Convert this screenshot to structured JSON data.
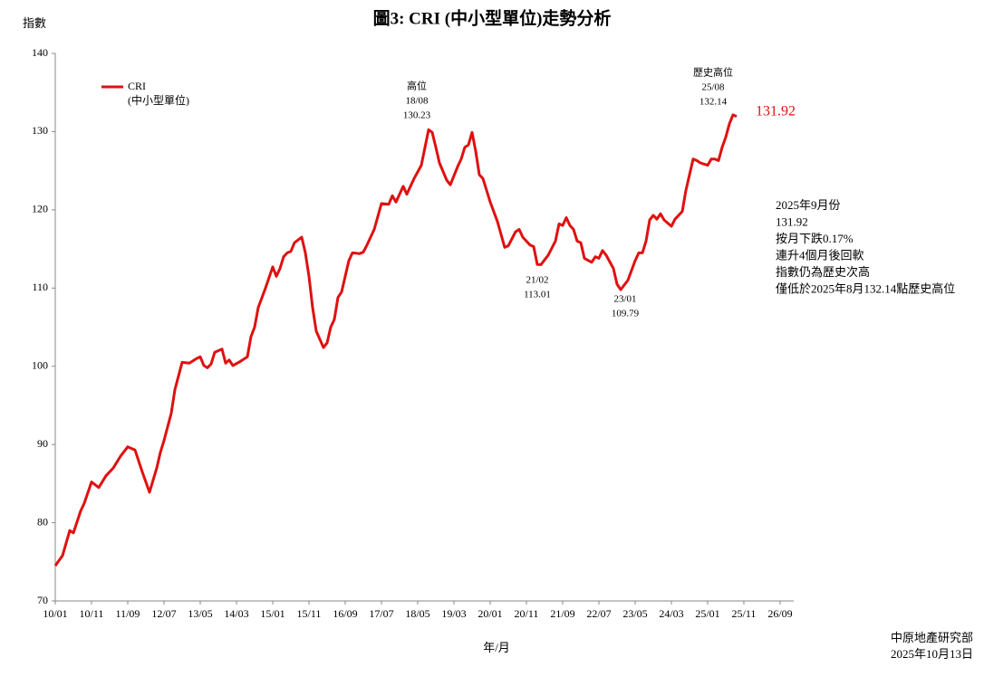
{
  "chart_data": {
    "type": "line",
    "title": "圖3: CRI (中小型單位)走勢分析",
    "y_label": "指數",
    "x_label": "年/月",
    "x": [
      "10/01",
      "10/03",
      "10/05",
      "10/06",
      "10/08",
      "10/09",
      "10/11",
      "11/01",
      "11/03",
      "11/05",
      "11/07",
      "11/09",
      "11/11",
      "12/01",
      "12/03",
      "12/05",
      "12/06",
      "12/07",
      "12/09",
      "12/10",
      "12/12",
      "13/02",
      "13/04",
      "13/05",
      "13/06",
      "13/07",
      "13/08",
      "13/09",
      "13/11",
      "13/12",
      "14/01",
      "14/02",
      "14/04",
      "14/06",
      "14/07",
      "14/08",
      "14/09",
      "14/11",
      "15/01",
      "15/02",
      "15/03",
      "15/04",
      "15/05",
      "15/06",
      "15/07",
      "15/09",
      "15/10",
      "15/11",
      "15/12",
      "16/01",
      "16/03",
      "16/04",
      "16/05",
      "16/06",
      "16/07",
      "16/08",
      "16/09",
      "16/10",
      "16/11",
      "17/01",
      "17/02",
      "17/03",
      "17/05",
      "17/07",
      "17/09",
      "17/10",
      "17/11",
      "18/01",
      "18/02",
      "18/04",
      "18/06",
      "18/08",
      "18/09",
      "18/10",
      "18/11",
      "19/01",
      "19/02",
      "19/04",
      "19/05",
      "19/06",
      "19/07",
      "19/08",
      "19/09",
      "19/10",
      "19/11",
      "20/01",
      "20/03",
      "20/05",
      "20/06",
      "20/08",
      "20/09",
      "20/10",
      "20/12",
      "21/01",
      "21/02",
      "21/03",
      "21/05",
      "21/07",
      "21/08",
      "21/09",
      "21/10",
      "21/11",
      "21/12",
      "22/01",
      "22/02",
      "22/03",
      "22/05",
      "22/06",
      "22/07",
      "22/08",
      "22/09",
      "22/11",
      "22/12",
      "23/01",
      "23/03",
      "23/05",
      "23/06",
      "23/07",
      "23/08",
      "23/09",
      "23/10",
      "23/11",
      "23/12",
      "24/01",
      "24/03",
      "24/04",
      "24/06",
      "24/07",
      "24/08",
      "24/09",
      "24/10",
      "24/11",
      "25/01",
      "25/02",
      "25/03",
      "25/04",
      "25/05",
      "25/06",
      "25/07",
      "25/08",
      "25/09"
    ],
    "series": [
      {
        "name": "CRI\n(中小型單位)",
        "color": "#e01010",
        "values": [
          74.5,
          75.8,
          79,
          78.7,
          81.5,
          82.5,
          85.2,
          84.5,
          86,
          87,
          88.5,
          89.7,
          89.3,
          86.5,
          83.9,
          87,
          89,
          90.5,
          94,
          97,
          100.5,
          100.4,
          101,
          101.2,
          100.1,
          99.8,
          100.3,
          101.8,
          102.2,
          100.4,
          100.8,
          100.1,
          100.6,
          101.2,
          103.8,
          105,
          107.5,
          110,
          112.7,
          111.5,
          112.5,
          114,
          114.5,
          114.7,
          115.8,
          116.5,
          114.5,
          111.5,
          107.5,
          104.5,
          102.4,
          103,
          105,
          106,
          108.8,
          109.5,
          111.5,
          113.5,
          114.5,
          114.4,
          114.6,
          115.5,
          117.5,
          120.8,
          120.7,
          121.8,
          121,
          123,
          122,
          124,
          125.7,
          130.23,
          129.9,
          128,
          126,
          123.8,
          123.2,
          125.5,
          126.5,
          128,
          128.3,
          129.9,
          127.5,
          124.5,
          124,
          121,
          118.5,
          115.2,
          115.4,
          117.2,
          117.5,
          116.5,
          115.5,
          115.3,
          113.01,
          113,
          114.2,
          116,
          118.2,
          118,
          119,
          118,
          117.5,
          116,
          115.8,
          113.8,
          113.3,
          114,
          113.8,
          114.8,
          114.2,
          112.5,
          110.5,
          109.79,
          111,
          113.5,
          114.5,
          114.5,
          116,
          118.7,
          119.3,
          118.8,
          119.5,
          118.7,
          117.9,
          118.8,
          119.8,
          122.5,
          124.5,
          126.5,
          126.3,
          126,
          125.7,
          126.5,
          126.5,
          126.3,
          128,
          129.3,
          131,
          132.14,
          131.92
        ]
      }
    ],
    "xlim": [
      "10/01",
      "26/09"
    ],
    "xticks": [
      "10/01",
      "10/11",
      "11/09",
      "12/07",
      "13/05",
      "14/03",
      "15/01",
      "15/11",
      "16/09",
      "17/07",
      "18/05",
      "19/03",
      "20/01",
      "20/11",
      "21/09",
      "22/07",
      "23/05",
      "24/03",
      "25/01",
      "25/11",
      "26/09"
    ],
    "ylim": [
      70,
      140
    ],
    "yticks": [
      70,
      80,
      90,
      100,
      110,
      120,
      130,
      140
    ],
    "grid": false,
    "legend": "upper left",
    "annotations": [
      {
        "lines": [
          "高位",
          "18/08",
          "130.23"
        ]
      },
      {
        "lines": [
          "21/02",
          "113.01"
        ]
      },
      {
        "lines": [
          "23/01",
          "109.79"
        ]
      },
      {
        "lines": [
          "歷史高位",
          "25/08",
          "132.14"
        ]
      },
      {
        "lines": [
          "131.92"
        ]
      }
    ],
    "notes": [
      "2025年9月份",
      "131.92",
      "按月下跌0.17%",
      "連升4個月後回軟",
      "指數仍為歷史次高",
      "僅低於2025年8月132.14點歷史高位"
    ],
    "source": [
      "中原地產研究部",
      "2025年10月13日"
    ]
  }
}
